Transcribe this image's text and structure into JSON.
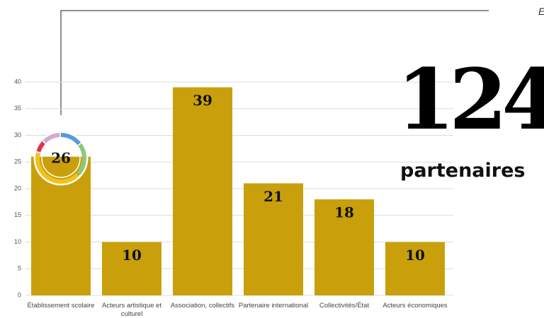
{
  "chart_data": {
    "type": "bar",
    "categories": [
      "Établissement scolaire",
      "Acteurs artistique et culturel",
      "Association, collectifs",
      "Partenaire international",
      "Collectivités/État",
      "Acteurs économiques"
    ],
    "values": [
      26,
      10,
      39,
      21,
      18,
      10
    ],
    "color": "#c9a00c",
    "ylim": [
      0,
      40
    ],
    "yticks": [
      0,
      5,
      10,
      15,
      20,
      25,
      30,
      35,
      40
    ],
    "grid": true
  },
  "summary": {
    "count": 124,
    "label": "partenaires"
  },
  "corner_text": "E"
}
